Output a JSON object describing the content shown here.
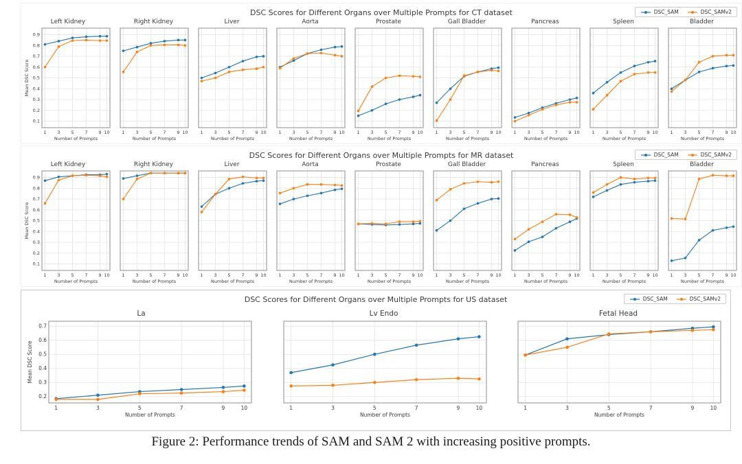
{
  "colors": {
    "series": [
      "#1f77b4",
      "#ff7f0e"
    ],
    "grid": "#e4e4e4",
    "axis_border": "#8c8c8c",
    "tick_text": "#3a3a3a"
  },
  "caption": "Figure 2: Performance trends of SAM and SAM 2 with increasing positive prompts.",
  "chart_data": [
    {
      "type": "line",
      "title": "DSC Scores for Different Organs over Multiple Prompts for CT dataset",
      "xlabel": "Number of Prompts",
      "ylabel": "Mean DSC Score",
      "legend": [
        "DSC_SAM",
        "DSC_SAMv2"
      ],
      "legend_position": "top-right",
      "grid": true,
      "x": [
        1,
        3,
        5,
        7,
        9,
        10
      ],
      "yticks": [
        0.1,
        0.2,
        0.3,
        0.4,
        0.5,
        0.6,
        0.7,
        0.8,
        0.9
      ],
      "ylim": [
        0.04,
        0.96
      ],
      "subplots": [
        {
          "title": "Left Kidney",
          "series": [
            {
              "name": "DSC_SAM",
              "values": [
                0.81,
                0.84,
                0.87,
                0.88,
                0.885,
                0.885
              ]
            },
            {
              "name": "DSC_SAMv2",
              "values": [
                0.6,
                0.79,
                0.845,
                0.85,
                0.845,
                0.845
              ]
            }
          ]
        },
        {
          "title": "Right Kidney",
          "series": [
            {
              "name": "DSC_SAM",
              "values": [
                0.75,
                0.785,
                0.82,
                0.84,
                0.85,
                0.85
              ]
            },
            {
              "name": "DSC_SAMv2",
              "values": [
                0.555,
                0.74,
                0.8,
                0.805,
                0.805,
                0.8
              ]
            }
          ]
        },
        {
          "title": "Liver",
          "series": [
            {
              "name": "DSC_SAM",
              "values": [
                0.5,
                0.545,
                0.6,
                0.655,
                0.695,
                0.7
              ]
            },
            {
              "name": "DSC_SAMv2",
              "values": [
                0.47,
                0.5,
                0.555,
                0.575,
                0.585,
                0.6
              ]
            }
          ]
        },
        {
          "title": "Aorta",
          "series": [
            {
              "name": "DSC_SAM",
              "values": [
                0.6,
                0.66,
                0.725,
                0.76,
                0.785,
                0.79
              ]
            },
            {
              "name": "DSC_SAMv2",
              "values": [
                0.59,
                0.68,
                0.725,
                0.73,
                0.71,
                0.7
              ]
            }
          ]
        },
        {
          "title": "Prostate",
          "series": [
            {
              "name": "DSC_SAM",
              "values": [
                0.15,
                0.2,
                0.26,
                0.3,
                0.325,
                0.34
              ]
            },
            {
              "name": "DSC_SAMv2",
              "values": [
                0.195,
                0.42,
                0.5,
                0.52,
                0.515,
                0.51
              ]
            }
          ]
        },
        {
          "title": "Gall Bladder",
          "series": [
            {
              "name": "DSC_SAM",
              "values": [
                0.27,
                0.4,
                0.515,
                0.555,
                0.585,
                0.595
              ]
            },
            {
              "name": "DSC_SAMv2",
              "values": [
                0.105,
                0.3,
                0.52,
                0.555,
                0.57,
                0.565
              ]
            }
          ]
        },
        {
          "title": "Pancreas",
          "series": [
            {
              "name": "DSC_SAM",
              "values": [
                0.135,
                0.175,
                0.225,
                0.265,
                0.3,
                0.315
              ]
            },
            {
              "name": "DSC_SAMv2",
              "values": [
                0.1,
                0.155,
                0.21,
                0.25,
                0.275,
                0.275
              ]
            }
          ]
        },
        {
          "title": "Spleen",
          "series": [
            {
              "name": "DSC_SAM",
              "values": [
                0.36,
                0.46,
                0.55,
                0.61,
                0.645,
                0.655
              ]
            },
            {
              "name": "DSC_SAMv2",
              "values": [
                0.21,
                0.34,
                0.47,
                0.535,
                0.55,
                0.55
              ]
            }
          ]
        },
        {
          "title": "Bladder",
          "series": [
            {
              "name": "DSC_SAM",
              "values": [
                0.4,
                0.48,
                0.555,
                0.59,
                0.61,
                0.615
              ]
            },
            {
              "name": "DSC_SAMv2",
              "values": [
                0.375,
                0.48,
                0.645,
                0.7,
                0.71,
                0.71
              ]
            }
          ]
        }
      ]
    },
    {
      "type": "line",
      "title": "DSC Scores for Different Organs over Multiple Prompts for MR dataset",
      "xlabel": "Number of Prompts",
      "ylabel": "Mean DSC Score",
      "legend": [
        "DSC_SAM",
        "DSC_SAMv2"
      ],
      "legend_position": "top-right",
      "grid": true,
      "x": [
        1,
        3,
        5,
        7,
        9,
        10
      ],
      "yticks": [
        0.1,
        0.2,
        0.3,
        0.4,
        0.5,
        0.6,
        0.7,
        0.8,
        0.9
      ],
      "ylim": [
        0.04,
        0.96
      ],
      "subplots": [
        {
          "title": "Left Kidney",
          "series": [
            {
              "name": "DSC_SAM",
              "values": [
                0.87,
                0.905,
                0.915,
                0.925,
                0.925,
                0.93
              ]
            },
            {
              "name": "DSC_SAMv2",
              "values": [
                0.66,
                0.875,
                0.915,
                0.92,
                0.915,
                0.905
              ]
            }
          ]
        },
        {
          "title": "Right Kidney",
          "series": [
            {
              "name": "DSC_SAM",
              "values": [
                0.89,
                0.915,
                0.94,
                0.94,
                0.94,
                0.94
              ]
            },
            {
              "name": "DSC_SAMv2",
              "values": [
                0.7,
                0.885,
                0.94,
                0.94,
                0.94,
                0.94
              ]
            }
          ]
        },
        {
          "title": "Liver",
          "series": [
            {
              "name": "DSC_SAM",
              "values": [
                0.63,
                0.745,
                0.8,
                0.845,
                0.865,
                0.87
              ]
            },
            {
              "name": "DSC_SAMv2",
              "values": [
                0.58,
                0.745,
                0.885,
                0.905,
                0.895,
                0.895
              ]
            }
          ]
        },
        {
          "title": "Aorta",
          "series": [
            {
              "name": "DSC_SAM",
              "values": [
                0.655,
                0.7,
                0.73,
                0.755,
                0.785,
                0.795
              ]
            },
            {
              "name": "DSC_SAMv2",
              "values": [
                0.755,
                0.8,
                0.835,
                0.835,
                0.83,
                0.825
              ]
            }
          ]
        },
        {
          "title": "Prostate",
          "series": [
            {
              "name": "DSC_SAM",
              "values": [
                0.47,
                0.465,
                0.46,
                0.465,
                0.47,
                0.475
              ]
            },
            {
              "name": "DSC_SAMv2",
              "values": [
                0.47,
                0.475,
                0.47,
                0.49,
                0.49,
                0.495
              ]
            }
          ]
        },
        {
          "title": "Gall Bladder",
          "series": [
            {
              "name": "DSC_SAM",
              "values": [
                0.41,
                0.5,
                0.61,
                0.66,
                0.7,
                0.705
              ]
            },
            {
              "name": "DSC_SAMv2",
              "values": [
                0.69,
                0.79,
                0.845,
                0.86,
                0.855,
                0.86
              ]
            }
          ]
        },
        {
          "title": "Pancreas",
          "series": [
            {
              "name": "DSC_SAM",
              "values": [
                0.225,
                0.305,
                0.35,
                0.43,
                0.49,
                0.52
              ]
            },
            {
              "name": "DSC_SAMv2",
              "values": [
                0.33,
                0.42,
                0.49,
                0.56,
                0.555,
                0.53
              ]
            }
          ]
        },
        {
          "title": "Spleen",
          "series": [
            {
              "name": "DSC_SAM",
              "values": [
                0.72,
                0.78,
                0.835,
                0.855,
                0.865,
                0.87
              ]
            },
            {
              "name": "DSC_SAMv2",
              "values": [
                0.76,
                0.835,
                0.9,
                0.885,
                0.895,
                0.895
              ]
            }
          ]
        },
        {
          "title": "Bladder",
          "series": [
            {
              "name": "DSC_SAM",
              "values": [
                0.13,
                0.155,
                0.32,
                0.41,
                0.435,
                0.445
              ]
            },
            {
              "name": "DSC_SAMv2",
              "values": [
                0.52,
                0.515,
                0.885,
                0.92,
                0.915,
                0.915
              ]
            }
          ]
        }
      ]
    },
    {
      "type": "line",
      "title": "DSC Scores for Different Organs over Multiple Prompts for US dataset",
      "xlabel": "Number of Prompts",
      "ylabel": "Mean DSC Score",
      "legend": [
        "DSC_SAM",
        "DSC_SAMv2"
      ],
      "legend_position": "top-right",
      "grid": true,
      "x": [
        1,
        3,
        5,
        7,
        9,
        10
      ],
      "yticks": [
        0.2,
        0.3,
        0.4,
        0.5,
        0.6,
        0.7
      ],
      "ylim": [
        0.155,
        0.735
      ],
      "subplots": [
        {
          "title": "La",
          "series": [
            {
              "name": "DSC_SAM",
              "values": [
                0.185,
                0.21,
                0.235,
                0.25,
                0.265,
                0.275
              ]
            },
            {
              "name": "DSC_SAMv2",
              "values": [
                0.18,
                0.18,
                0.22,
                0.225,
                0.235,
                0.245
              ]
            }
          ]
        },
        {
          "title": "Lv Endo",
          "series": [
            {
              "name": "DSC_SAM",
              "values": [
                0.37,
                0.425,
                0.5,
                0.565,
                0.61,
                0.625
              ]
            },
            {
              "name": "DSC_SAMv2",
              "values": [
                0.275,
                0.28,
                0.3,
                0.32,
                0.33,
                0.325
              ]
            }
          ]
        },
        {
          "title": "Fetal Head",
          "series": [
            {
              "name": "DSC_SAM",
              "values": [
                0.495,
                0.61,
                0.64,
                0.66,
                0.685,
                0.695
              ]
            },
            {
              "name": "DSC_SAMv2",
              "values": [
                0.495,
                0.55,
                0.645,
                0.66,
                0.67,
                0.675
              ]
            }
          ]
        }
      ]
    }
  ]
}
